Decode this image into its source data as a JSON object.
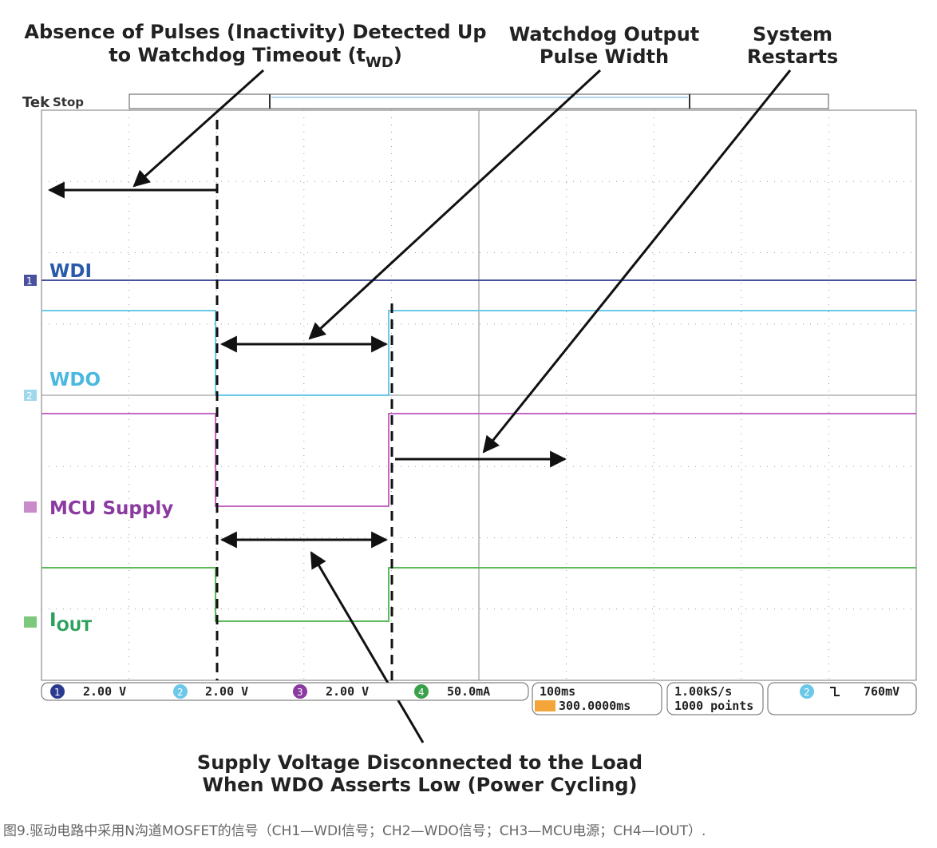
{
  "annotations": {
    "timeout": {
      "line1": "Absence of Pulses (Inactivity) Detected Up",
      "line2": "to Watchdog Timeout (t",
      "sub": "WD",
      "close": ")"
    },
    "pulse_width": {
      "line1": "Watchdog Output",
      "line2": "Pulse Width"
    },
    "restart": {
      "line1": "System",
      "line2": "Restarts"
    },
    "supply": {
      "line1": "Supply Voltage Disconnected to the Load",
      "line2": "When WDO Asserts Low (Power Cycling)"
    }
  },
  "scope": {
    "brand": "Tek",
    "state": "Stop",
    "channels": [
      {
        "marker": "1",
        "label": "WDI",
        "scale": "2.00 V"
      },
      {
        "marker": "2",
        "label": "WDO",
        "scale": "2.00 V"
      },
      {
        "marker": "3",
        "label": "MCU Supply",
        "scale": "2.00 V"
      },
      {
        "marker": "4",
        "label": "I",
        "sub": "OUT",
        "scale": "50.0mA"
      }
    ],
    "timebase": "100ms",
    "position": "300.0000ms",
    "sample_rate": "1.00kS/s",
    "record": "1000 points",
    "trigger_channel": "2",
    "trigger_level": "760mV"
  },
  "caption": "图9.驱动电路中采用N沟道MOSFET的信号（CH1—WDI信号；CH2—WDO信号；CH3—MCU电源；CH4—IOUT）."
}
